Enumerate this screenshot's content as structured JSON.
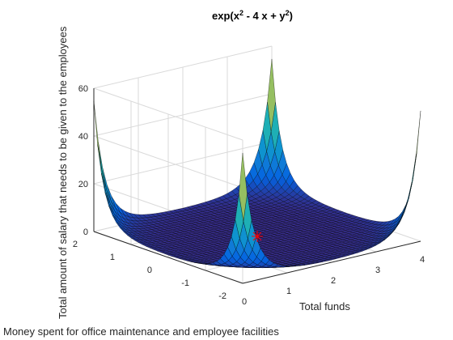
{
  "chart_data": {
    "type": "surface3d",
    "title_base": "exp(x",
    "title_exp1": "2",
    "title_mid": " - 4 x + y",
    "title_exp2": "2",
    "title_end": ")",
    "function": "exp(x^2 - 4*x + y^2)",
    "xlabel": "Total funds",
    "ylabel": "Money spent for office maintenance and employee facilities",
    "zlabel": "Total amount of salary that needs to be given to the employees",
    "x_ticks": [
      "0",
      "1",
      "2",
      "3",
      "4"
    ],
    "y_ticks": [
      "-2",
      "-1",
      "0",
      "1",
      "2"
    ],
    "z_ticks": [
      "0",
      "20",
      "40",
      "60"
    ],
    "xlim": [
      0,
      4
    ],
    "ylim": [
      -2,
      2
    ],
    "zlim": [
      0,
      60
    ],
    "grid": true,
    "colormap": "parula",
    "marker": {
      "x": 2,
      "y": 0,
      "z": 0.0183,
      "symbol": "star",
      "color": "#ff0000"
    }
  }
}
